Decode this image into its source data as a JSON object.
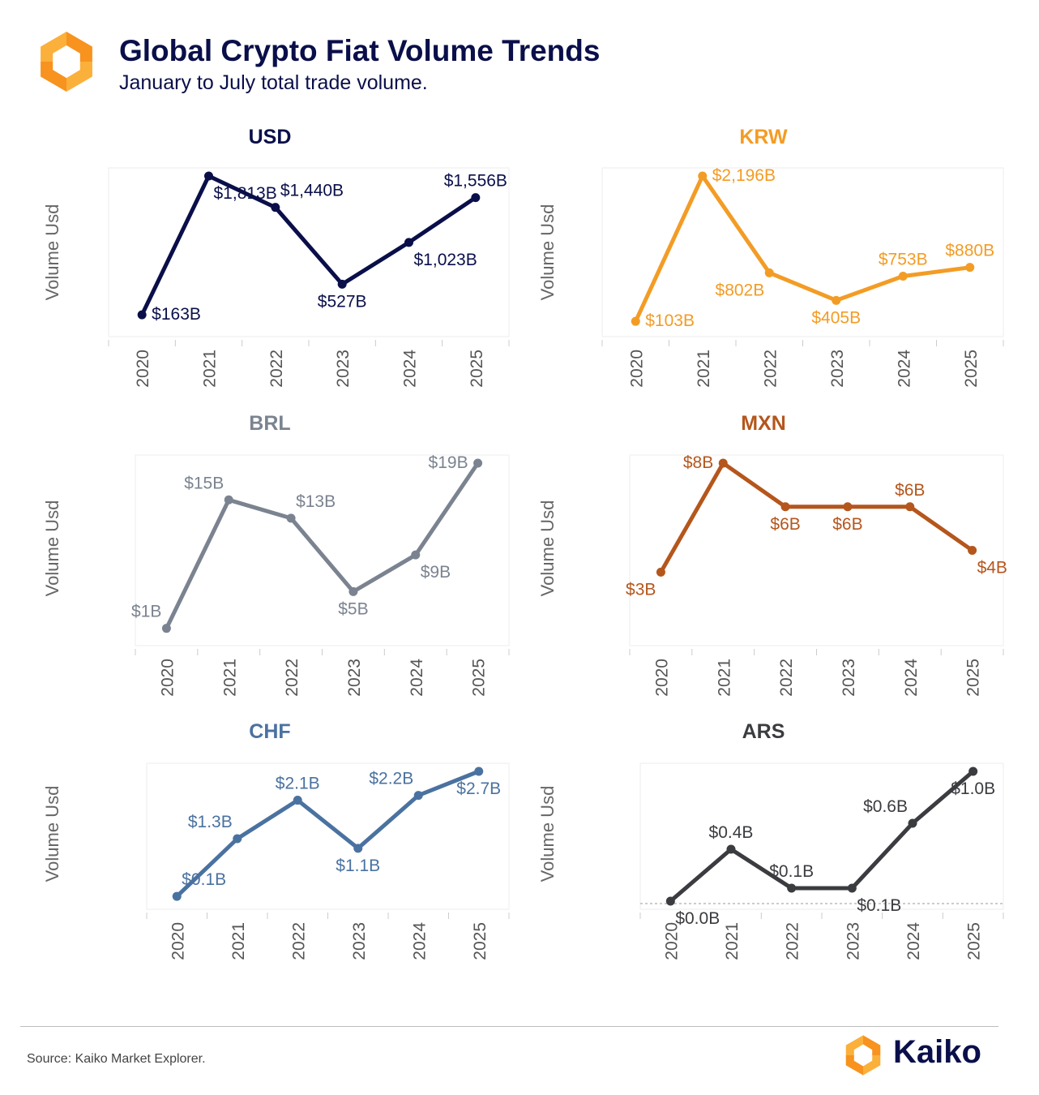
{
  "header": {
    "title": "Global Crypto Fiat Volume Trends",
    "subtitle": "January to July total trade volume."
  },
  "footer": {
    "source": "Source: Kaiko Market Explorer.",
    "brand": "Kaiko"
  },
  "colors": {
    "title": "#0a0f4a",
    "logo_orange": "#f7931e",
    "logo_yellow": "#fbb03b",
    "axis_label": "#555555"
  },
  "chart_data": [
    {
      "type": "line",
      "title": "USD",
      "ylabel": "Volume Usd",
      "color": "#0a0f4a",
      "x": [
        "2020",
        "2021",
        "2022",
        "2023",
        "2024",
        "2025"
      ],
      "values": [
        163,
        1813,
        1440,
        527,
        1023,
        1556
      ],
      "labels": [
        "$163B",
        "$1,813B",
        "$1,440B",
        "$527B",
        "$1,023B",
        "$1,556B"
      ],
      "label_pos": [
        "right",
        "below-right",
        "above-right",
        "below",
        "below-right",
        "above"
      ],
      "grid": false
    },
    {
      "type": "line",
      "title": "KRW",
      "ylabel": "Volume Usd",
      "color": "#f39c25",
      "x": [
        "2020",
        "2021",
        "2022",
        "2023",
        "2024",
        "2025"
      ],
      "values": [
        103,
        2196,
        802,
        405,
        753,
        880
      ],
      "labels": [
        "$103B",
        "$2,196B",
        "$802B",
        "$405B",
        "$753B",
        "$880B"
      ],
      "label_pos": [
        "right",
        "right",
        "below-left",
        "below",
        "above",
        "above"
      ],
      "grid": false
    },
    {
      "type": "line",
      "title": "BRL",
      "ylabel": "Volume Usd",
      "color": "#7b8390",
      "x": [
        "2020",
        "2021",
        "2022",
        "2023",
        "2024",
        "2025"
      ],
      "values": [
        1,
        15,
        13,
        5,
        9,
        19
      ],
      "labels": [
        "$1B",
        "$15B",
        "$13B",
        "$5B",
        "$9B",
        "$19B"
      ],
      "label_pos": [
        "above-left",
        "above-left",
        "above-right",
        "below",
        "below-right",
        "left"
      ],
      "grid": false
    },
    {
      "type": "line",
      "title": "MXN",
      "ylabel": "Volume Usd",
      "color": "#b5561c",
      "x": [
        "2020",
        "2021",
        "2022",
        "2023",
        "2024",
        "2025"
      ],
      "values": [
        3,
        8,
        6,
        6,
        6,
        4
      ],
      "labels": [
        "$3B",
        "$8B",
        "$6B",
        "$6B",
        "$6B",
        "$4B"
      ],
      "label_pos": [
        "below-left",
        "left",
        "below",
        "below",
        "above",
        "below-right"
      ],
      "grid": false
    },
    {
      "type": "line",
      "title": "CHF",
      "ylabel": "Volume Usd",
      "color": "#4a72a0",
      "x": [
        "2020",
        "2021",
        "2022",
        "2023",
        "2024",
        "2025"
      ],
      "values": [
        0.1,
        1.3,
        2.1,
        1.1,
        2.2,
        2.7
      ],
      "labels": [
        "$0.1B",
        "$1.3B",
        "$2.1B",
        "$1.1B",
        "$2.2B",
        "$2.7B"
      ],
      "label_pos": [
        "above-right",
        "above-left",
        "above",
        "below",
        "above-left",
        "below"
      ],
      "grid": false
    },
    {
      "type": "line",
      "title": "ARS",
      "ylabel": "Volume Usd",
      "color": "#3b3c40",
      "x": [
        "2020",
        "2021",
        "2022",
        "2023",
        "2024",
        "2025"
      ],
      "values": [
        0.0,
        0.4,
        0.1,
        0.1,
        0.6,
        1.0
      ],
      "labels": [
        "$0.0B",
        "$0.4B",
        "$0.1B",
        "$0.1B",
        "$0.6B",
        "$1.0B"
      ],
      "label_pos": [
        "below-right",
        "above",
        "above",
        "below-right",
        "above-left",
        "below"
      ],
      "grid": false,
      "baseline": true
    }
  ]
}
